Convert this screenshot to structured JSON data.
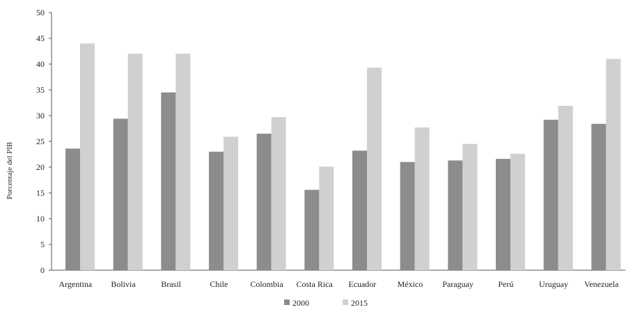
{
  "chart_data": {
    "type": "bar",
    "title": "",
    "xlabel": "",
    "ylabel": "Porcentaje del PIB",
    "ylim": [
      0,
      50
    ],
    "yticks": [
      0,
      5,
      10,
      15,
      20,
      25,
      30,
      35,
      40,
      45,
      50
    ],
    "grid": false,
    "legend_position": "bottom-center",
    "categories": [
      "Argentina",
      "Bolivia",
      "Brasil",
      "Chile",
      "Colombia",
      "Costa Rica",
      "Ecuador",
      "México",
      "Paraguay",
      "Perú",
      "Uruguay",
      "Venezuela"
    ],
    "series": [
      {
        "name": "2000",
        "color": "#8c8c8c",
        "values": [
          23.6,
          29.4,
          34.5,
          23.0,
          26.5,
          15.6,
          23.2,
          21.0,
          21.3,
          21.6,
          29.2,
          28.4
        ]
      },
      {
        "name": "2015",
        "color": "#d0d0d0",
        "values": [
          44.0,
          42.0,
          42.0,
          25.9,
          29.7,
          20.1,
          39.3,
          27.7,
          24.5,
          22.6,
          31.9,
          41.0
        ]
      }
    ]
  }
}
